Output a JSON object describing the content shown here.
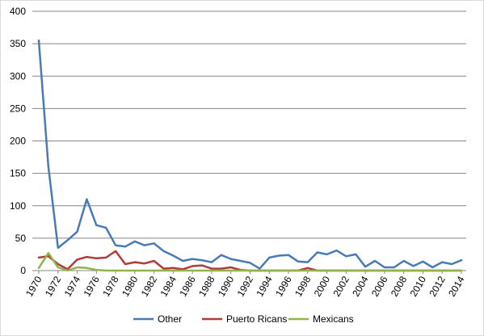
{
  "chart_data": {
    "type": "line",
    "title": "",
    "xlabel": "",
    "ylabel": "",
    "ylim": [
      0,
      400
    ],
    "yticks": [
      0,
      50,
      100,
      150,
      200,
      250,
      300,
      350,
      400
    ],
    "grid": true,
    "legend": "bottom",
    "x": [
      1970,
      1971,
      1972,
      1973,
      1974,
      1975,
      1976,
      1977,
      1978,
      1979,
      1980,
      1981,
      1982,
      1983,
      1984,
      1985,
      1986,
      1987,
      1988,
      1989,
      1990,
      1991,
      1992,
      1993,
      1994,
      1995,
      1996,
      1997,
      1998,
      1999,
      2000,
      2001,
      2002,
      2003,
      2004,
      2005,
      2006,
      2007,
      2008,
      2009,
      2010,
      2011,
      2012,
      2013,
      2014
    ],
    "xticks": [
      "1970",
      "1972",
      "1974",
      "1976",
      "1978",
      "1980",
      "1982",
      "1984",
      "1986",
      "1988",
      "1990",
      "1992",
      "1994",
      "1996",
      "1998",
      "2000",
      "2002",
      "2004",
      "2006",
      "2008",
      "2010",
      "2012",
      "2014"
    ],
    "series": [
      {
        "name": "Other",
        "color": "#4a7ab5",
        "values": [
          355,
          160,
          35,
          47,
          60,
          110,
          70,
          66,
          39,
          37,
          45,
          39,
          42,
          30,
          23,
          15,
          18,
          16,
          13,
          24,
          18,
          15,
          12,
          3,
          20,
          23,
          24,
          14,
          13,
          28,
          25,
          31,
          22,
          25,
          6,
          15,
          5,
          5,
          15,
          7,
          14,
          5,
          13,
          10,
          16
        ]
      },
      {
        "name": "Puerto Ricans",
        "color": "#b03c3a",
        "values": [
          20,
          22,
          10,
          2,
          17,
          21,
          19,
          20,
          30,
          10,
          13,
          11,
          15,
          3,
          4,
          2,
          7,
          8,
          3,
          3,
          5,
          1,
          0,
          0,
          0,
          0,
          0,
          0,
          4,
          0,
          0,
          0,
          0,
          0,
          0,
          0,
          0,
          0,
          0,
          0,
          0,
          0,
          0,
          0,
          0
        ]
      },
      {
        "name": "Mexicans",
        "color": "#92b24a",
        "values": [
          4,
          27,
          5,
          0,
          5,
          4,
          1,
          0,
          0,
          0,
          0,
          0,
          0,
          0,
          0,
          0,
          0,
          0,
          0,
          0,
          0,
          0,
          0,
          0,
          0,
          0,
          0,
          0,
          0,
          0,
          0,
          0,
          0,
          0,
          0,
          0,
          0,
          0,
          0,
          0,
          0,
          0,
          0,
          0,
          0
        ]
      }
    ]
  }
}
